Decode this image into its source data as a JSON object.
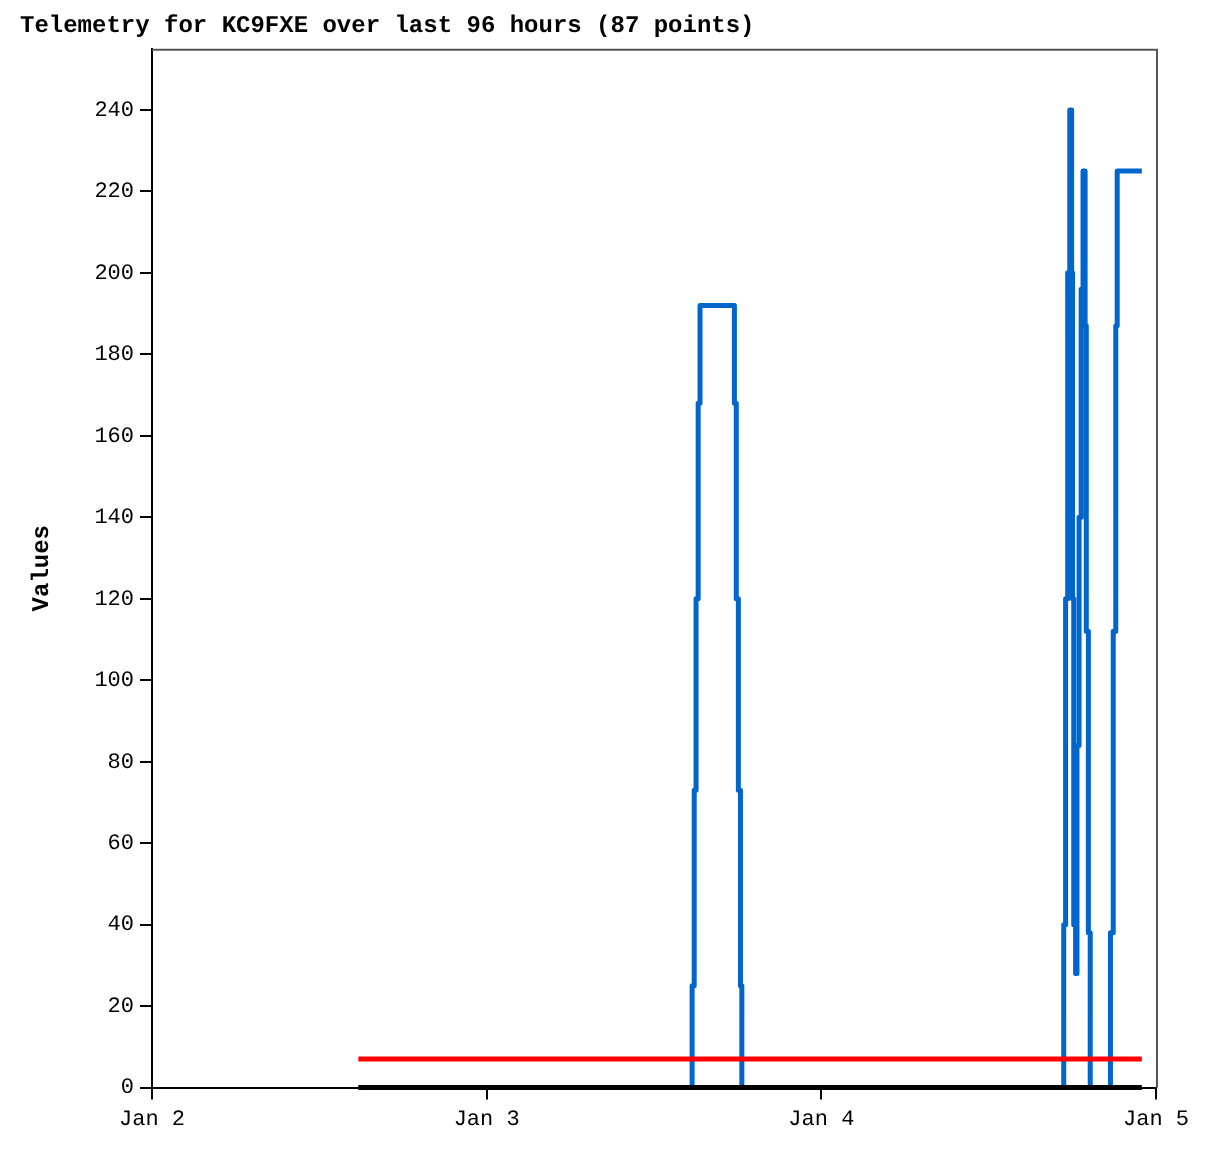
{
  "chart_data": {
    "type": "step",
    "title": "Telemetry for KC9FXE over last 96 hours (87 points)",
    "ylabel": "Values",
    "xlim": [
      "--01-02",
      "--01-05"
    ],
    "xticks": [
      {
        "value": "--01-02",
        "label": "Jan 2"
      },
      {
        "value": "--01-03",
        "label": "Jan 3"
      },
      {
        "value": "--01-04",
        "label": "Jan 4"
      },
      {
        "value": "--01-05",
        "label": "Jan 5"
      }
    ],
    "ylim": [
      0,
      255
    ],
    "yticks": [
      0,
      20,
      40,
      60,
      80,
      100,
      120,
      140,
      160,
      180,
      200,
      220,
      240
    ],
    "grid": false,
    "legend": false,
    "marker": "none",
    "line_style": "solid",
    "series": [
      {
        "color": "#0066cc",
        "x": [
          "--01-02T14:48",
          "--01-03T14:44",
          "--01-03T14:53",
          "--01-03T15:01",
          "--01-03T15:10",
          "--01-03T15:18",
          "--01-03T17:46",
          "--01-03T17:54",
          "--01-03T18:03",
          "--01-03T18:12",
          "--01-03T18:18",
          "--01-04T17:23",
          "--01-04T17:31",
          "--01-04T17:40",
          "--01-04T17:49",
          "--01-04T17:57",
          "--01-04T18:01",
          "--01-04T18:06",
          "--01-04T18:14",
          "--01-04T18:20",
          "--01-04T18:29",
          "--01-04T18:38",
          "--01-04T18:46",
          "--01-04T18:55",
          "--01-04T19:00",
          "--01-04T19:09",
          "--01-04T19:17",
          "--01-04T20:44",
          "--01-04T20:56",
          "--01-04T21:07",
          "--01-04T21:13",
          "--01-04T22:59"
        ],
        "values": [
          0,
          25,
          73,
          120,
          168,
          192,
          168,
          120,
          73,
          25,
          0,
          40,
          120,
          200,
          240,
          200,
          120,
          40,
          28,
          84,
          140,
          196,
          225,
          187,
          112,
          38,
          0,
          38,
          112,
          187,
          225,
          225
        ]
      },
      {
        "type": "line",
        "color": "#ff0000",
        "x": [
          "--01-02T14:48",
          "--01-04T22:59"
        ],
        "values": [
          7,
          7
        ]
      },
      {
        "type": "line",
        "color": "#000000",
        "x": [
          "--01-02T14:48",
          "--01-04T22:59"
        ],
        "values": [
          0,
          0
        ]
      }
    ]
  }
}
